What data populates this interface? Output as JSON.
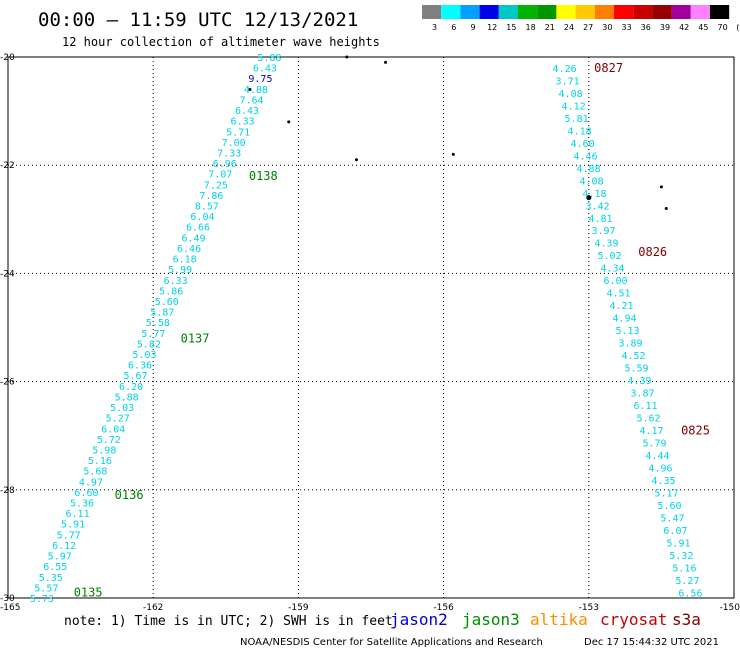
{
  "header": {
    "title": "00:00 – 11:59 UTC 12/13/2021",
    "subtitle": "12 hour collection of altimeter wave heights"
  },
  "colorbar": {
    "labels": [
      "3",
      "6",
      "9",
      "12",
      "15",
      "18",
      "21",
      "24",
      "27",
      "30",
      "33",
      "36",
      "39",
      "42",
      "45",
      "70",
      "(ft)"
    ],
    "colors": [
      "#808080",
      "#00ffff",
      "#00a0ff",
      "#0000e6",
      "#00c8c8",
      "#00b400",
      "#009600",
      "#ffff00",
      "#ffc800",
      "#ff8000",
      "#ff0000",
      "#c80000",
      "#960000",
      "#a000a0",
      "#ff80ff",
      "#000000"
    ]
  },
  "value_color": "#00d2e6",
  "time_colors": {
    "jason3": "#008000",
    "cryosat": "#800000"
  },
  "footer": {
    "note": "note: 1) Time is in UTC; 2) SWH is in feet",
    "satellites": [
      {
        "name": "jason2",
        "color": "#0000dc"
      },
      {
        "name": "jason3",
        "color": "#008c00"
      },
      {
        "name": "altika",
        "color": "#ff8c00"
      },
      {
        "name": "cryosat",
        "color": "#c80000"
      },
      {
        "name": "s3a",
        "color": "#800000"
      }
    ],
    "credit": "NOAA/NESDIS Center for Satellite Applications and Research",
    "timestamp": "Dec 17 15:44:32 UTC 2021"
  },
  "chart_data": {
    "type": "scatter",
    "xlim": [
      -165,
      -150
    ],
    "ylim": [
      -30,
      -20
    ],
    "xticks": [
      -165,
      -162,
      -159,
      -156,
      -153,
      -150
    ],
    "yticks": [
      -20,
      -22,
      -24,
      -26,
      -28,
      -30
    ],
    "grid": true,
    "tracks": [
      {
        "satellite": "jason3",
        "lon_start": -159.6,
        "lat_start": -20.0,
        "lon_end": -164.3,
        "lat_end": -30.0,
        "values": [
          "5.88",
          "6.43",
          "9.75",
          "4.88",
          "7.64",
          "6.43",
          "6.33",
          "5.71",
          "7.00",
          "7.33",
          "6.96",
          "7.07",
          "7.25",
          "7.86",
          "8.57",
          "6.04",
          "6.66",
          "6.49",
          "6.46",
          "6.18",
          "5.99",
          "6.33",
          "5.86",
          "5.60",
          "5.87",
          "5.58",
          "5.77",
          "5.82",
          "5.03",
          "6.36",
          "5.67",
          "6.20",
          "5.88",
          "5.03",
          "5.27",
          "6.04",
          "5.72",
          "5.98",
          "5.16",
          "5.68",
          "4.97",
          "6.60",
          "5.36",
          "6.11",
          "5.91",
          "5.77",
          "6.12",
          "5.97",
          "6.55",
          "5.35",
          "5.57",
          "5.73"
        ],
        "times": [
          {
            "label": "0138",
            "lat": -22.2
          },
          {
            "label": "0137",
            "lat": -25.2
          },
          {
            "label": "0136",
            "lat": -28.1
          },
          {
            "label": "0135",
            "lat": -29.9
          }
        ]
      },
      {
        "satellite": "cryosat",
        "lon_start": -153.5,
        "lat_start": -20.2,
        "lon_end": -150.9,
        "lat_end": -29.9,
        "values": [
          "4.26",
          "3.71",
          "4.08",
          "4.12",
          "5.81",
          "4.18",
          "4.60",
          "4.46",
          "4.88",
          "4.08",
          "4.18",
          "3.42",
          "4.81",
          "3.97",
          "4.39",
          "5.02",
          "4.34",
          "6.00",
          "4.51",
          "4.21",
          "4.94",
          "5.13",
          "3.89",
          "4.52",
          "5.59",
          "4.39",
          "3.87",
          "6.11",
          "5.62",
          "4.17",
          "5.79",
          "4.44",
          "4.96",
          "4.35",
          "5.17",
          "5.60",
          "5.47",
          "6.07",
          "5.91",
          "5.32",
          "5.16",
          "5.27",
          "6.56"
        ],
        "times": [
          {
            "label": "0827",
            "lat": -20.2
          },
          {
            "label": "0826",
            "lat": -23.6
          },
          {
            "label": "0825",
            "lat": -26.9
          }
        ]
      }
    ],
    "islands": [
      {
        "lon": -160.0,
        "lat": -20.6
      },
      {
        "lon": -159.2,
        "lat": -21.2
      },
      {
        "lon": -157.8,
        "lat": -21.9
      },
      {
        "lon": -157.2,
        "lat": -20.1
      },
      {
        "lon": -155.8,
        "lat": -21.8
      },
      {
        "lon": -153.0,
        "lat": -22.6
      },
      {
        "lon": -151.5,
        "lat": -22.4
      },
      {
        "lon": -151.4,
        "lat": -22.8
      },
      {
        "lon": -158.0,
        "lat": -20.0
      }
    ]
  }
}
